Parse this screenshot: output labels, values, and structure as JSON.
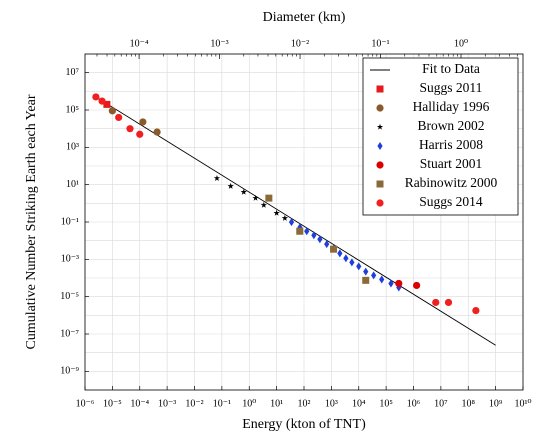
{
  "chart_data": {
    "type": "scatter",
    "xlabel": "Energy (kton of TNT)",
    "x2label": "Diameter (km)",
    "ylabel": "Cumulative Number Striking Earth each Year",
    "xscale": "log",
    "yscale": "log",
    "x2scale": "log",
    "xlim": [
      1e-06,
      10000000000.0
    ],
    "ylim": [
      1e-10,
      100000000.0
    ],
    "x2lim": [
      2.13e-05,
      5.89
    ],
    "grid": true,
    "legend": "upper right",
    "xticks": [
      {
        "value": 1e-06,
        "label": "10⁻⁶"
      },
      {
        "value": 1e-05,
        "label": "10⁻⁵"
      },
      {
        "value": 0.0001,
        "label": "10⁻⁴"
      },
      {
        "value": 0.001,
        "label": "10⁻³"
      },
      {
        "value": 0.01,
        "label": "10⁻²"
      },
      {
        "value": 0.1,
        "label": "10⁻¹"
      },
      {
        "value": 1,
        "label": "10⁰"
      },
      {
        "value": 10,
        "label": "10¹"
      },
      {
        "value": 100,
        "label": "10²"
      },
      {
        "value": 1000.0,
        "label": "10³"
      },
      {
        "value": 10000.0,
        "label": "10⁴"
      },
      {
        "value": 100000.0,
        "label": "10⁵"
      },
      {
        "value": 1000000.0,
        "label": "10⁶"
      },
      {
        "value": 10000000.0,
        "label": "10⁷"
      },
      {
        "value": 100000000.0,
        "label": "10⁸"
      },
      {
        "value": 1000000000.0,
        "label": "10⁹"
      },
      {
        "value": 10000000000.0,
        "label": "10¹⁰"
      }
    ],
    "x2ticks": [
      {
        "value": 0.0001,
        "label": "10⁻⁴"
      },
      {
        "value": 0.001,
        "label": "10⁻³"
      },
      {
        "value": 0.01,
        "label": "10⁻²"
      },
      {
        "value": 0.1,
        "label": "10⁻¹"
      },
      {
        "value": 1,
        "label": "10⁰"
      }
    ],
    "yticks": [
      {
        "value": 10000000.0,
        "label": "10⁷"
      },
      {
        "value": 100000.0,
        "label": "10⁵"
      },
      {
        "value": 1000.0,
        "label": "10³"
      },
      {
        "value": 10,
        "label": "10¹"
      },
      {
        "value": 0.1,
        "label": "10⁻¹"
      },
      {
        "value": 0.001,
        "label": "10⁻³"
      },
      {
        "value": 1e-05,
        "label": "10⁻⁵"
      },
      {
        "value": 1e-07,
        "label": "10⁻⁷"
      },
      {
        "value": 1e-09,
        "label": "10⁻⁹"
      }
    ],
    "series": [
      {
        "name": "Fit to Data",
        "marker": "line",
        "color": "#000000",
        "x": [
          2.5e-06,
          1000000000.0
        ],
        "values": [
          500000.0,
          2.5e-08
        ]
      },
      {
        "name": "Suggs 2011",
        "marker": "square",
        "color": "#e41a1c",
        "x": [
          6.3e-06
        ],
        "values": [
          200000.0
        ]
      },
      {
        "name": "Halliday 1996",
        "marker": "circle",
        "color": "#8b5a2b",
        "x": [
          1e-05,
          0.00013,
          0.00043
        ],
        "values": [
          90000.0,
          23000.0,
          6600.0
        ]
      },
      {
        "name": "Brown 2002",
        "marker": "star",
        "color": "#000000",
        "x": [
          0.066,
          0.21,
          0.63,
          1.7,
          3.4,
          10,
          20
        ],
        "values": [
          22,
          8.3,
          4,
          1.9,
          0.8,
          0.3,
          0.16
        ]
      },
      {
        "name": "Harris 2008",
        "marker": "diamond",
        "color": "#1f3fdc",
        "x": [
          35,
          71,
          126,
          229,
          380,
          676,
          1230,
          2040,
          3390,
          5620,
          10000,
          18000,
          35000,
          69000,
          150000,
          290000
        ],
        "values": [
          0.098,
          0.052,
          0.032,
          0.0195,
          0.012,
          0.0065,
          0.004,
          0.0021,
          0.00115,
          0.00069,
          0.00042,
          0.00022,
          0.000138,
          8.3e-05,
          5.1e-05,
          3.1e-05
        ]
      },
      {
        "name": "Stuart 2001",
        "marker": "circle",
        "color": "#dd0000",
        "x": [
          290000,
          1300000
        ],
        "values": [
          5.1e-05,
          4e-05
        ]
      },
      {
        "name": "Rabinowitz 2000",
        "marker": "square",
        "color": "#8b6a3a",
        "x": [
          5.2,
          70,
          1200,
          18000
        ],
        "values": [
          1.9,
          0.032,
          0.0035,
          7.5e-05
        ]
      },
      {
        "name": "Suggs 2014",
        "marker": "circle",
        "color": "#f02020",
        "x": [
          2.5e-06,
          4.2e-06,
          1.7e-05,
          4.4e-05,
          0.0001,
          6500000.0,
          19000000.0,
          190000000.0
        ],
        "values": [
          500000.0,
          300000.0,
          40000.0,
          10000.0,
          5000.0,
          4.9e-06,
          4.9e-06,
          1.8e-06
        ]
      }
    ]
  }
}
